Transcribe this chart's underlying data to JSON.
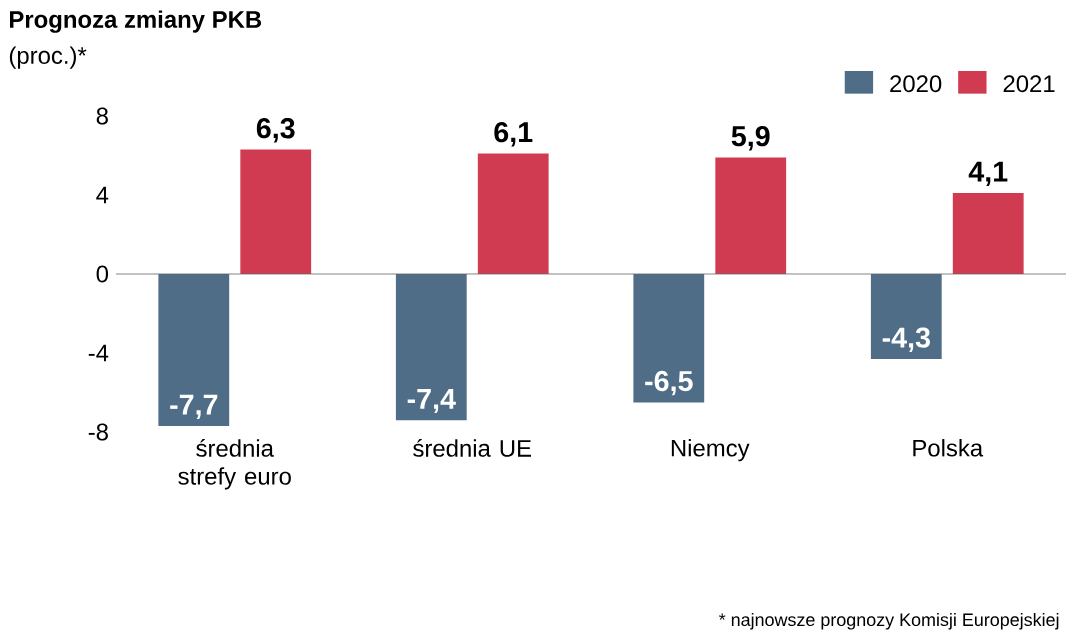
{
  "chart_data": {
    "type": "bar",
    "title": "Prognoza zmiany PKB",
    "subtitle": "(proc.)*",
    "categories": [
      "średnia strefy euro",
      "średnia UE",
      "Niemcy",
      "Polska"
    ],
    "series": [
      {
        "name": "2020",
        "color": "#4f6d87",
        "values": [
          -7.7,
          -7.4,
          -6.5,
          -4.3
        ],
        "value_labels": [
          "-7,7",
          "-7,4",
          "-6,5",
          "-4,3"
        ]
      },
      {
        "name": "2021",
        "color": "#d03b52",
        "values": [
          6.3,
          6.1,
          5.9,
          4.1
        ],
        "value_labels": [
          "6,3",
          "6,1",
          "5,9",
          "4,1"
        ]
      }
    ],
    "ref_lines": [
      {
        "axis": "y",
        "value": 0
      }
    ],
    "ylim": [
      -8,
      8
    ],
    "yticks": [
      -8,
      -4,
      0,
      4,
      8
    ],
    "grid": false,
    "legend": "top right",
    "annotations": [
      "* najnowsze prognozy Komisji Europejskiej"
    ]
  }
}
